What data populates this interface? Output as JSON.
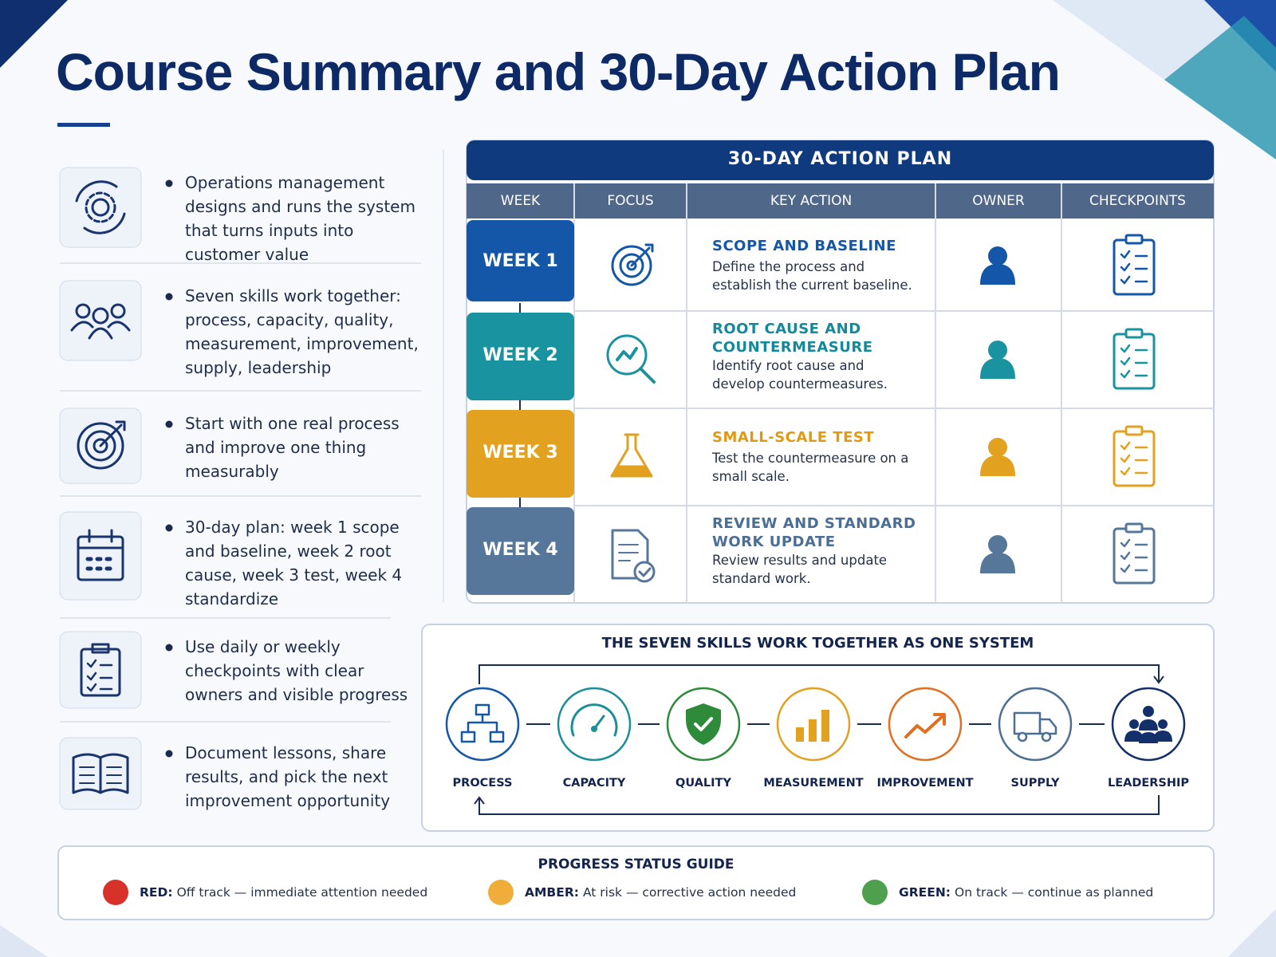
{
  "header": {
    "title": "Course Summary and 30-Day Action Plan"
  },
  "summary": [
    "Operations management designs and runs the system that turns inputs into customer value",
    "Seven skills work together: process, capacity, quality, measurement, improvement, supply, leadership",
    "Start with one real process and improve one thing measurably",
    "30-day plan: week 1 scope and baseline, week 2 root cause, week 3 test, week 4 standardize",
    "Use daily or weekly checkpoints with clear owners and visible progress",
    "Document lessons, share results, and pick the next improvement opportunity"
  ],
  "action_plan": {
    "title": "30-DAY ACTION PLAN",
    "columns": [
      "WEEK",
      "FOCUS",
      "KEY ACTION",
      "OWNER",
      "CHECKPOINTS"
    ],
    "rows": [
      {
        "week": "WEEK 1",
        "heading": "SCOPE AND BASELINE",
        "text": "Define the process and establish the current baseline."
      },
      {
        "week": "WEEK 2",
        "heading": "ROOT CAUSE AND COUNTERMEASURE",
        "text": "Identify root cause and develop countermeasures."
      },
      {
        "week": "WEEK 3",
        "heading": "SMALL-SCALE TEST",
        "text": "Test the countermeasure on a small scale."
      },
      {
        "week": "WEEK 4",
        "heading": "REVIEW AND STANDARD WORK UPDATE",
        "text": "Review results and update standard work."
      }
    ]
  },
  "skills": {
    "title": "THE SEVEN SKILLS WORK TOGETHER AS ONE SYSTEM",
    "items": [
      "PROCESS",
      "CAPACITY",
      "QUALITY",
      "MEASUREMENT",
      "IMPROVEMENT",
      "SUPPLY",
      "LEADERSHIP"
    ]
  },
  "status_guide": {
    "title": "PROGRESS STATUS GUIDE",
    "items": [
      {
        "label": "RED:",
        "text": "Off track — immediate attention needed"
      },
      {
        "label": "AMBER:",
        "text": "At risk — corrective action needed"
      },
      {
        "label": "GREEN:",
        "text": "On track — continue as planned"
      }
    ]
  }
}
